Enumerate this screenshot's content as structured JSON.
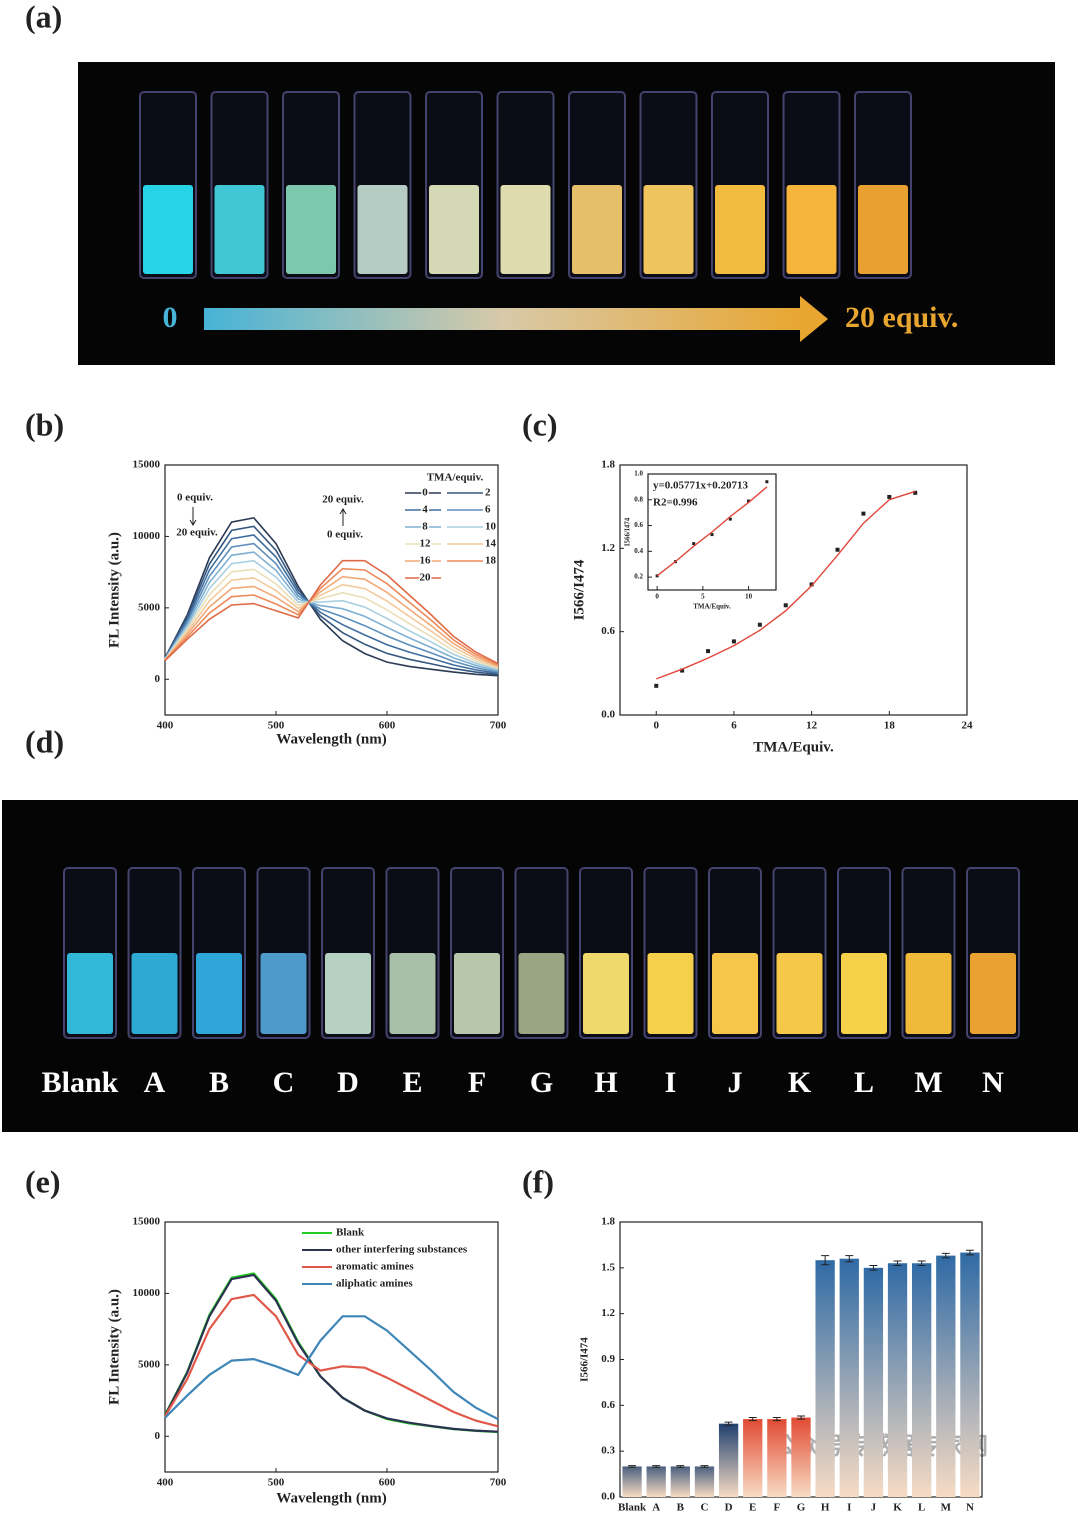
{
  "panel_labels": [
    "(a)",
    "(b)",
    "(c)",
    "(d)",
    "(e)",
    "(f)"
  ],
  "photos": {
    "a": {
      "start_label": "0",
      "end_label": "20 equiv.",
      "cuvette_colors": [
        "#27d3e6",
        "#3fc7d6",
        "#7cc7ad",
        "#b4ccc4",
        "#d4d8b4",
        "#dedcae",
        "#e6bf6a",
        "#f0c45c",
        "#f2bb40",
        "#f5b53a",
        "#e8a131"
      ]
    },
    "d": {
      "labels": [
        "Blank",
        "A",
        "B",
        "C",
        "D",
        "E",
        "F",
        "G",
        "H",
        "I",
        "J",
        "K",
        "L",
        "M",
        "N"
      ],
      "cuvette_colors": [
        "#31b8d8",
        "#2ea9d3",
        "#2fa6d8",
        "#4d9acb",
        "#b6d0c2",
        "#a9c0a8",
        "#b8c6ac",
        "#9aa584",
        "#efd96b",
        "#f7d04b",
        "#f6c64a",
        "#f6c84a",
        "#f8d14a",
        "#f0b93a",
        "#e9a232"
      ]
    }
  },
  "chart_data": [
    {
      "type": "line",
      "xlabel": "Wavelength (nm)",
      "ylabel": "FL Intensity (a.u.)",
      "xlim": [
        400,
        700
      ],
      "xticks": [
        400,
        500,
        600,
        700
      ],
      "ylim": [
        -2500,
        15000
      ],
      "yticks": [
        0,
        5000,
        10000,
        15000
      ],
      "legend_title": "TMA/equiv.",
      "legend": "upper right",
      "annotations": [
        "0 equiv.",
        "20 equiv.",
        "20 equiv.",
        "0 equiv."
      ],
      "x": [
        400,
        420,
        440,
        460,
        480,
        500,
        520,
        540,
        560,
        580,
        600,
        620,
        640,
        660,
        680,
        700
      ],
      "series": [
        {
          "name": "0",
          "color": "#2b3a55",
          "values": [
            1500,
            4500,
            8500,
            11000,
            11300,
            9500,
            6500,
            4200,
            2700,
            1800,
            1200,
            900,
            700,
            500,
            350,
            250
          ]
        },
        {
          "name": "2",
          "color": "#35577f",
          "values": [
            1480,
            4330,
            8070,
            10420,
            10700,
            9030,
            6280,
            4440,
            3260,
            2450,
            1810,
            1400,
            1080,
            750,
            505,
            335
          ]
        },
        {
          "name": "4",
          "color": "#3f6d9e",
          "values": [
            1460,
            4160,
            7640,
            9840,
            10100,
            8560,
            6060,
            4680,
            3820,
            3100,
            2420,
            1900,
            1460,
            1000,
            660,
            420
          ]
        },
        {
          "name": "6",
          "color": "#5d8fbd",
          "values": [
            1440,
            3990,
            7210,
            9260,
            9500,
            8090,
            5840,
            4920,
            4380,
            3750,
            3030,
            2400,
            1840,
            1250,
            815,
            505
          ]
        },
        {
          "name": "8",
          "color": "#7fb0d3",
          "values": [
            1420,
            3820,
            6780,
            8680,
            8900,
            7620,
            5620,
            5160,
            4940,
            4400,
            3640,
            2900,
            2220,
            1500,
            970,
            590
          ]
        },
        {
          "name": "10",
          "color": "#a8cfe0",
          "values": [
            1400,
            3650,
            6350,
            8100,
            8300,
            7150,
            5400,
            5400,
            5500,
            5050,
            4250,
            3400,
            2600,
            1750,
            1125,
            675
          ]
        },
        {
          "name": "12",
          "color": "#eadfb8",
          "values": [
            1380,
            3480,
            5920,
            7520,
            7700,
            6680,
            5180,
            5640,
            6060,
            5700,
            4860,
            3900,
            2980,
            2000,
            1280,
            760
          ]
        },
        {
          "name": "14",
          "color": "#f3c99a",
          "values": [
            1360,
            3310,
            5490,
            6940,
            7100,
            6210,
            4960,
            5880,
            6620,
            6350,
            5470,
            4400,
            3360,
            2250,
            1435,
            845
          ]
        },
        {
          "name": "16",
          "color": "#f2a877",
          "values": [
            1340,
            3140,
            5060,
            6360,
            6500,
            5740,
            4740,
            6120,
            7180,
            7000,
            6080,
            4900,
            3740,
            2500,
            1590,
            930
          ]
        },
        {
          "name": "18",
          "color": "#ec8a5a",
          "values": [
            1320,
            2970,
            4630,
            5780,
            5900,
            5270,
            4520,
            6360,
            7740,
            7650,
            6690,
            5400,
            4120,
            2750,
            1745,
            1015
          ]
        },
        {
          "name": "20",
          "color": "#e06a45",
          "values": [
            1300,
            2800,
            4200,
            5200,
            5300,
            4800,
            4300,
            6600,
            8300,
            8300,
            7300,
            5900,
            4500,
            3000,
            1900,
            1100
          ]
        }
      ]
    },
    {
      "type": "scatter",
      "xlabel": "TMA/Equiv.",
      "ylabel": "I566/I474",
      "xlim": [
        -2.8,
        24
      ],
      "xticks": [
        0,
        6,
        12,
        18,
        24
      ],
      "ylim": [
        0,
        1.8
      ],
      "yticks": [
        {
          "value": 0,
          "label": "0.0"
        },
        0.6,
        1.2,
        1.8
      ],
      "x": [
        0,
        2,
        4,
        6,
        8,
        10,
        12,
        14,
        16,
        18,
        20
      ],
      "series": [
        {
          "color": "#222222",
          "values": [
            0.21,
            0.32,
            0.46,
            0.53,
            0.65,
            0.79,
            0.94,
            1.19,
            1.45,
            1.57,
            1.6
          ]
        },
        {
          "color": "#e0463a",
          "line": true,
          "values": [
            0.26,
            0.33,
            0.41,
            0.5,
            0.61,
            0.75,
            0.93,
            1.15,
            1.38,
            1.55,
            1.61
          ]
        }
      ]
    },
    {
      "type": "scatter",
      "xlabel": "TMA/Equiv.",
      "ylabel": "I566/I474",
      "xlim": [
        -1,
        13
      ],
      "xticks": [
        0,
        5,
        10
      ],
      "ylim": [
        0.1,
        1.0
      ],
      "yticks": [
        0.2,
        0.4,
        0.6,
        0.8,
        {
          "value": 1,
          "label": "1.0"
        }
      ],
      "annotations": [
        "y=0.05771x+0.20713",
        "R2=0.996"
      ],
      "x": [
        0,
        2,
        4,
        6,
        8,
        10,
        12
      ],
      "series": [
        {
          "color": "#222222",
          "values": [
            0.21,
            0.32,
            0.46,
            0.53,
            0.65,
            0.79,
            0.94
          ]
        },
        {
          "color": "#e0463a",
          "line": true,
          "values": [
            0.21,
            0.32,
            0.44,
            0.55,
            0.67,
            0.78,
            0.9
          ]
        }
      ]
    },
    {
      "type": "line",
      "xlabel": "Wavelength (nm)",
      "ylabel": "FL Intensity (a.u.)",
      "xlim": [
        400,
        700
      ],
      "xticks": [
        400,
        500,
        600,
        700
      ],
      "ylim": [
        -2500,
        15000
      ],
      "yticks": [
        0,
        5000,
        10000,
        15000
      ],
      "legend": "upper right",
      "x": [
        400,
        420,
        440,
        460,
        480,
        500,
        520,
        540,
        560,
        580,
        600,
        620,
        640,
        660,
        680,
        700
      ],
      "series": [
        {
          "name": "Blank",
          "color": "#22cc22",
          "values": [
            1500,
            4500,
            8500,
            11100,
            11400,
            9600,
            6600,
            4200,
            2700,
            1800,
            1200,
            900,
            700,
            500,
            380,
            300
          ]
        },
        {
          "name": "other interfering substances",
          "color": "#2b3350",
          "values": [
            1450,
            4450,
            8400,
            11000,
            11300,
            9500,
            6500,
            4200,
            2700,
            1800,
            1250,
            950,
            720,
            520,
            400,
            320
          ]
        },
        {
          "name": "aromatic amines",
          "color": "#e0584a",
          "values": [
            1400,
            4000,
            7500,
            9600,
            9900,
            8400,
            5700,
            4600,
            4900,
            4800,
            4100,
            3300,
            2500,
            1700,
            1100,
            700
          ]
        },
        {
          "name": "aliphatic amines",
          "color": "#3f86b8",
          "values": [
            1300,
            2850,
            4300,
            5300,
            5400,
            4900,
            4300,
            6700,
            8400,
            8400,
            7400,
            6000,
            4600,
            3100,
            2000,
            1200
          ]
        }
      ]
    },
    {
      "type": "bar",
      "ylabel": "I566/I474",
      "ylim": [
        0,
        1.8
      ],
      "yticks": [
        {
          "value": 0,
          "label": "0.0"
        },
        0.3,
        0.6,
        0.9,
        1.2,
        1.5,
        1.8
      ],
      "categories": [
        "Blank",
        "A",
        "B",
        "C",
        "D",
        "E",
        "F",
        "G",
        "H",
        "I",
        "J",
        "K",
        "L",
        "M",
        "N"
      ],
      "values": [
        0.2,
        0.2,
        0.2,
        0.2,
        0.48,
        0.51,
        0.51,
        0.52,
        1.55,
        1.56,
        1.5,
        1.53,
        1.53,
        1.58,
        1.6
      ],
      "errors": [
        0.005,
        0.005,
        0.005,
        0.005,
        0.01,
        0.01,
        0.01,
        0.01,
        0.03,
        0.02,
        0.015,
        0.015,
        0.015,
        0.015,
        0.015
      ],
      "colors": [
        "#4a5f80",
        "#4a5f80",
        "#4a5f80",
        "#4a5f80",
        "#1f3f6e",
        "#e24a33",
        "#e24a33",
        "#e24a33",
        "#2f6aa5",
        "#2f6aa5",
        "#2f6aa5",
        "#2f6aa5",
        "#2f6aa5",
        "#2f6aa5",
        "#2f6aa5"
      ]
    }
  ],
  "watermark": "公众号传感器专家网"
}
